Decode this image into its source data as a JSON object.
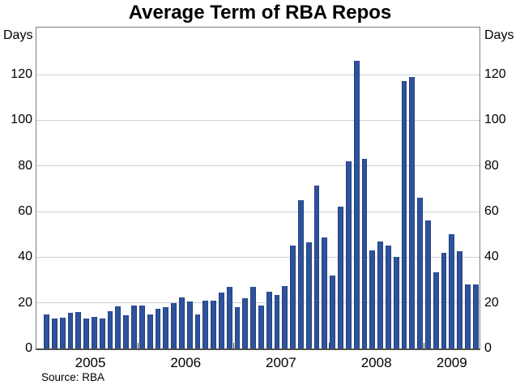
{
  "chart_data": {
    "type": "bar",
    "title": "Average Term of RBA Repos",
    "y_unit": "Days",
    "source": "Source: RBA",
    "xlabel": "",
    "ylabel": "Days",
    "ylim": [
      0,
      140.6
    ],
    "y_ticks": [
      0,
      20,
      40,
      60,
      80,
      100,
      120
    ],
    "grid": true,
    "legend": "none",
    "bar_color": "#2e529d",
    "gridline_color": "#cdd2d7",
    "x_year_labels": [
      "2005",
      "2006",
      "2007",
      "2008",
      "2009"
    ],
    "frequency": "monthly",
    "months": [
      "2005-01",
      "2005-02",
      "2005-03",
      "2005-04",
      "2005-05",
      "2005-06",
      "2005-07",
      "2005-08",
      "2005-09",
      "2005-10",
      "2005-11",
      "2005-12",
      "2006-01",
      "2006-02",
      "2006-03",
      "2006-04",
      "2006-05",
      "2006-06",
      "2006-07",
      "2006-08",
      "2006-09",
      "2006-10",
      "2006-11",
      "2006-12",
      "2007-01",
      "2007-02",
      "2007-03",
      "2007-04",
      "2007-05",
      "2007-06",
      "2007-07",
      "2007-08",
      "2007-09",
      "2007-10",
      "2007-11",
      "2007-12",
      "2008-01",
      "2008-02",
      "2008-03",
      "2008-04",
      "2008-05",
      "2008-06",
      "2008-07",
      "2008-08",
      "2008-09",
      "2008-10",
      "2008-11",
      "2008-12",
      "2009-01",
      "2009-02",
      "2009-03",
      "2009-04",
      "2009-05",
      "2009-06",
      "2009-07"
    ],
    "values": [
      15,
      13,
      13.5,
      15.5,
      16,
      13,
      14,
      13,
      16.5,
      18.5,
      14.5,
      19,
      19,
      15,
      17.5,
      18,
      20,
      22.5,
      20.5,
      15,
      21,
      21,
      24.5,
      27,
      18,
      22,
      27,
      19,
      25,
      23.5,
      27.5,
      45,
      65,
      46.5,
      71.5,
      48.5,
      32,
      62,
      82,
      126,
      83,
      43,
      47,
      45,
      40,
      117,
      119,
      66,
      56,
      33.5,
      42,
      50,
      42.5,
      28,
      28
    ]
  }
}
